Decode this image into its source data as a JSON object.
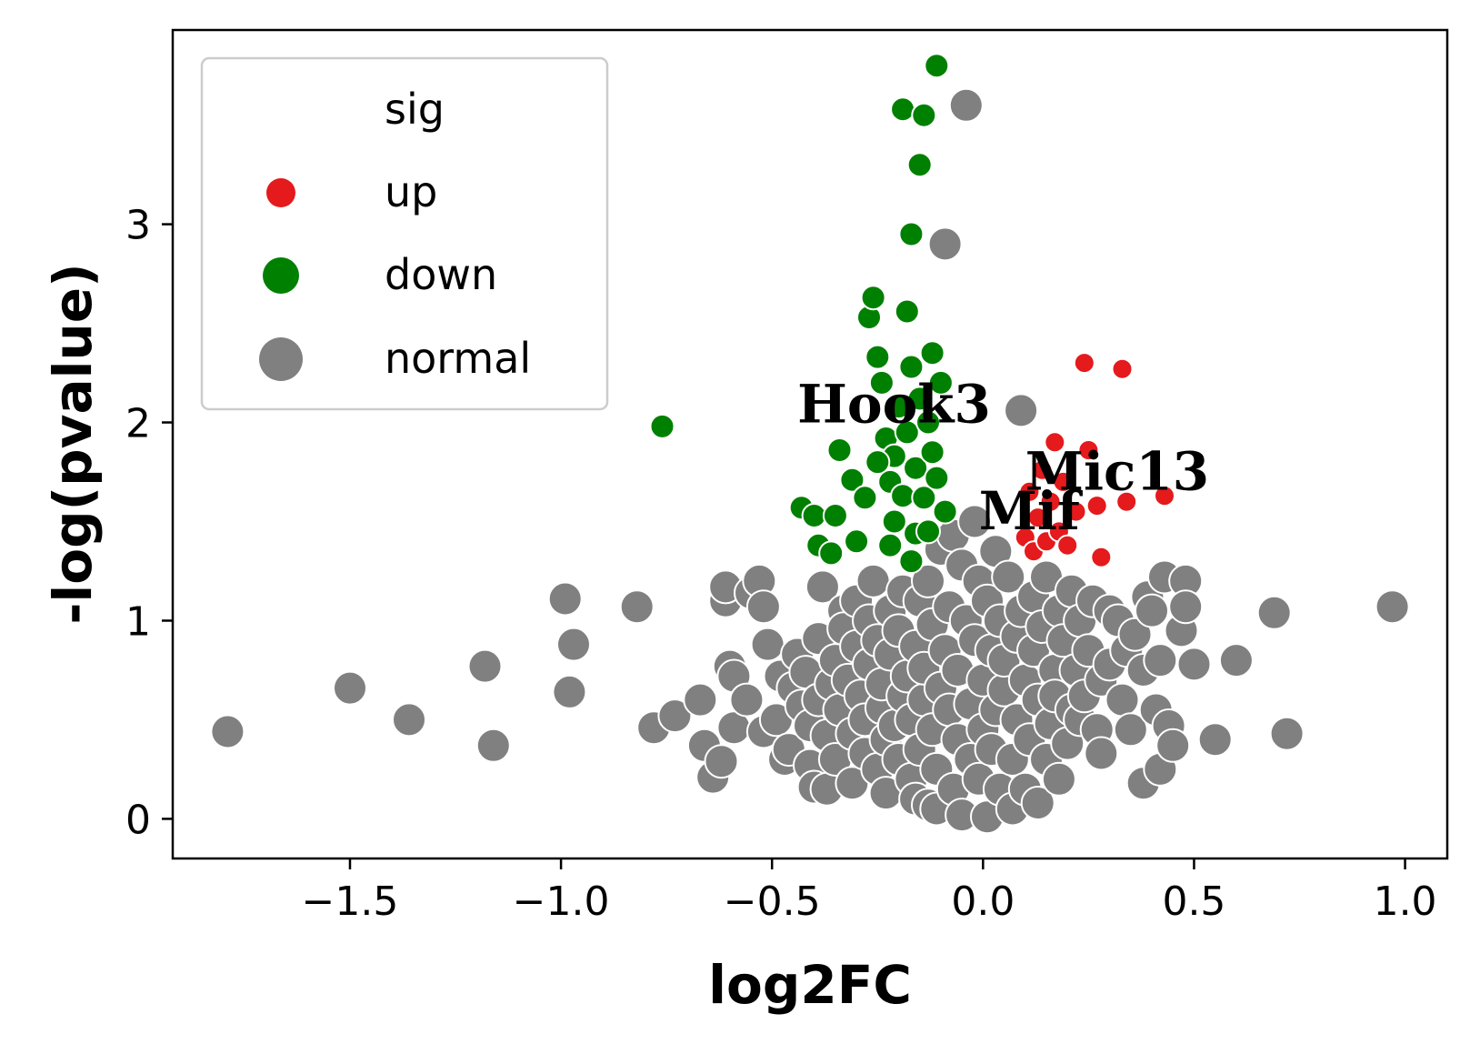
{
  "chart_data": {
    "type": "scatter",
    "xlabel": "log2FC",
    "ylabel": "-log(pvalue)",
    "xlim": [
      -1.92,
      1.1
    ],
    "ylim": [
      -0.2,
      3.98
    ],
    "x_ticks": [
      -1.5,
      -1.0,
      -0.5,
      0.0,
      0.5,
      1.0
    ],
    "x_tick_labels": [
      "−1.5",
      "−1.0",
      "−0.5",
      "0.0",
      "0.5",
      "1.0"
    ],
    "y_ticks": [
      0,
      1,
      2,
      3
    ],
    "y_tick_labels": [
      "0",
      "1",
      "2",
      "3"
    ],
    "grid": false,
    "legend": {
      "title": "sig",
      "placement": "top-left",
      "entries": [
        "up",
        "down",
        "normal"
      ]
    },
    "colors": {
      "up": "#e41a1c",
      "down": "#008000",
      "normal": "#808080"
    },
    "annotations": [
      {
        "text": "Hook3",
        "x": -0.44,
        "y": 2.0
      },
      {
        "text": "Mic13",
        "x": 0.1,
        "y": 1.66
      },
      {
        "text": "Mif",
        "x": -0.01,
        "y": 1.46
      }
    ],
    "series": [
      {
        "name": "normal",
        "points": [
          [
            -1.79,
            0.44
          ],
          [
            -1.5,
            0.66
          ],
          [
            -1.36,
            0.5
          ],
          [
            -1.18,
            0.77
          ],
          [
            -1.16,
            0.37
          ],
          [
            -0.99,
            1.11
          ],
          [
            -0.97,
            0.88
          ],
          [
            -0.98,
            0.64
          ],
          [
            -0.82,
            1.07
          ],
          [
            -0.78,
            0.46
          ],
          [
            -0.73,
            0.52
          ],
          [
            -0.67,
            0.6
          ],
          [
            -0.66,
            0.37
          ],
          [
            -0.64,
            0.21
          ],
          [
            -0.62,
            0.29
          ],
          [
            -0.61,
            1.1
          ],
          [
            -0.61,
            1.17
          ],
          [
            -0.6,
            0.77
          ],
          [
            -0.59,
            0.72
          ],
          [
            -0.59,
            0.46
          ],
          [
            -0.56,
            0.6
          ],
          [
            -0.55,
            1.14
          ],
          [
            -0.53,
            1.2
          ],
          [
            -0.52,
            1.07
          ],
          [
            -0.52,
            0.44
          ],
          [
            -0.51,
            0.88
          ],
          [
            -0.49,
            0.5
          ],
          [
            -0.48,
            0.72
          ],
          [
            -0.47,
            0.3
          ],
          [
            -0.46,
            0.35
          ],
          [
            -0.45,
            0.66
          ],
          [
            -0.44,
            0.83
          ],
          [
            -0.43,
            0.57
          ],
          [
            -0.42,
            0.74
          ],
          [
            -0.41,
            0.47
          ],
          [
            -0.41,
            0.27
          ],
          [
            -0.4,
            0.16
          ],
          [
            -0.39,
            0.6
          ],
          [
            -0.39,
            0.91
          ],
          [
            -0.38,
            1.17
          ],
          [
            -0.37,
            0.15
          ],
          [
            -0.37,
            0.42
          ],
          [
            -0.36,
            0.68
          ],
          [
            -0.35,
            0.8
          ],
          [
            -0.35,
            0.3
          ],
          [
            -0.34,
            0.55
          ],
          [
            -0.33,
            1.05
          ],
          [
            -0.33,
            0.96
          ],
          [
            -0.32,
            0.7
          ],
          [
            -0.31,
            0.43
          ],
          [
            -0.31,
            0.18
          ],
          [
            -0.3,
            0.87
          ],
          [
            -0.3,
            1.1
          ],
          [
            -0.29,
            0.62
          ],
          [
            -0.28,
            0.33
          ],
          [
            -0.28,
            0.5
          ],
          [
            -0.27,
            1.0
          ],
          [
            -0.27,
            0.78
          ],
          [
            -0.26,
            1.2
          ],
          [
            -0.25,
            0.25
          ],
          [
            -0.25,
            0.9
          ],
          [
            -0.24,
            0.56
          ],
          [
            -0.24,
            0.68
          ],
          [
            -0.23,
            0.13
          ],
          [
            -0.23,
            0.4
          ],
          [
            -0.22,
            1.05
          ],
          [
            -0.22,
            0.83
          ],
          [
            -0.21,
            0.47
          ],
          [
            -0.2,
            0.3
          ],
          [
            -0.2,
            0.95
          ],
          [
            -0.19,
            0.62
          ],
          [
            -0.19,
            1.15
          ],
          [
            -0.18,
            0.72
          ],
          [
            -0.17,
            0.2
          ],
          [
            -0.17,
            0.5
          ],
          [
            -0.16,
            0.1
          ],
          [
            -0.16,
            0.87
          ],
          [
            -0.15,
            1.1
          ],
          [
            -0.15,
            0.35
          ],
          [
            -0.14,
            0.6
          ],
          [
            -0.14,
            0.76
          ],
          [
            -0.13,
            0.07
          ],
          [
            -0.13,
            1.2
          ],
          [
            -0.12,
            0.45
          ],
          [
            -0.12,
            0.98
          ],
          [
            -0.11,
            0.05
          ],
          [
            -0.11,
            0.25
          ],
          [
            -0.1,
            0.66
          ],
          [
            -0.1,
            1.36
          ],
          [
            -0.09,
            2.9
          ],
          [
            -0.09,
            0.85
          ],
          [
            -0.08,
            0.55
          ],
          [
            -0.08,
            1.07
          ],
          [
            -0.07,
            1.43
          ],
          [
            -0.07,
            0.15
          ],
          [
            -0.06,
            0.4
          ],
          [
            -0.06,
            0.75
          ],
          [
            -0.05,
            1.28
          ],
          [
            -0.05,
            0.02
          ],
          [
            -0.04,
            1.0
          ],
          [
            -0.04,
            3.6
          ],
          [
            -0.03,
            0.3
          ],
          [
            -0.03,
            0.58
          ],
          [
            -0.02,
            1.5
          ],
          [
            -0.02,
            0.9
          ],
          [
            -0.01,
            0.2
          ],
          [
            -0.01,
            1.2
          ],
          [
            0.0,
            0.45
          ],
          [
            0.0,
            0.7
          ],
          [
            0.01,
            1.1
          ],
          [
            0.01,
            0.01
          ],
          [
            0.02,
            0.35
          ],
          [
            0.02,
            0.85
          ],
          [
            0.03,
            1.35
          ],
          [
            0.03,
            0.55
          ],
          [
            0.04,
            0.15
          ],
          [
            0.04,
            1.0
          ],
          [
            0.05,
            0.65
          ],
          [
            0.05,
            0.8
          ],
          [
            0.06,
            1.22
          ],
          [
            0.07,
            0.3
          ],
          [
            0.07,
            0.05
          ],
          [
            0.08,
            0.92
          ],
          [
            0.08,
            0.5
          ],
          [
            0.09,
            2.06
          ],
          [
            0.09,
            1.05
          ],
          [
            0.1,
            0.7
          ],
          [
            0.1,
            0.15
          ],
          [
            0.11,
            0.4
          ],
          [
            0.12,
            1.12
          ],
          [
            0.12,
            0.85
          ],
          [
            0.13,
            0.6
          ],
          [
            0.13,
            0.08
          ],
          [
            0.14,
            0.97
          ],
          [
            0.15,
            0.3
          ],
          [
            0.15,
            1.22
          ],
          [
            0.16,
            0.48
          ],
          [
            0.17,
            0.75
          ],
          [
            0.17,
            0.62
          ],
          [
            0.18,
            1.05
          ],
          [
            0.18,
            0.2
          ],
          [
            0.19,
            0.9
          ],
          [
            0.2,
            0.38
          ],
          [
            0.21,
            0.55
          ],
          [
            0.21,
            1.15
          ],
          [
            0.22,
            0.75
          ],
          [
            0.23,
            1.0
          ],
          [
            0.23,
            0.5
          ],
          [
            0.24,
            0.62
          ],
          [
            0.25,
            0.85
          ],
          [
            0.26,
            1.1
          ],
          [
            0.27,
            0.45
          ],
          [
            0.28,
            0.7
          ],
          [
            0.28,
            0.33
          ],
          [
            0.3,
            1.05
          ],
          [
            0.3,
            0.78
          ],
          [
            0.32,
            1.0
          ],
          [
            0.33,
            0.6
          ],
          [
            0.34,
            0.85
          ],
          [
            0.35,
            0.45
          ],
          [
            0.36,
            0.93
          ],
          [
            0.38,
            0.75
          ],
          [
            0.38,
            0.18
          ],
          [
            0.39,
            1.12
          ],
          [
            0.4,
            1.05
          ],
          [
            0.41,
            0.55
          ],
          [
            0.42,
            0.8
          ],
          [
            0.42,
            0.25
          ],
          [
            0.43,
            1.22
          ],
          [
            0.44,
            0.47
          ],
          [
            0.45,
            0.37
          ],
          [
            0.47,
            0.95
          ],
          [
            0.48,
            1.2
          ],
          [
            0.48,
            1.07
          ],
          [
            0.5,
            0.78
          ],
          [
            0.55,
            0.4
          ],
          [
            0.6,
            0.8
          ],
          [
            0.69,
            1.04
          ],
          [
            0.72,
            0.43
          ],
          [
            0.97,
            1.07
          ]
        ]
      },
      {
        "name": "down",
        "points": [
          [
            -0.76,
            1.98
          ],
          [
            -0.43,
            1.57
          ],
          [
            -0.4,
            1.53
          ],
          [
            -0.39,
            1.38
          ],
          [
            -0.36,
            1.34
          ],
          [
            -0.35,
            1.53
          ],
          [
            -0.34,
            1.86
          ],
          [
            -0.31,
            1.71
          ],
          [
            -0.3,
            1.4
          ],
          [
            -0.27,
            2.53
          ],
          [
            -0.26,
            2.63
          ],
          [
            -0.25,
            2.33
          ],
          [
            -0.24,
            2.2
          ],
          [
            -0.23,
            1.92
          ],
          [
            -0.22,
            1.7
          ],
          [
            -0.21,
            1.5
          ],
          [
            -0.21,
            1.83
          ],
          [
            -0.2,
            2.08
          ],
          [
            -0.19,
            3.58
          ],
          [
            -0.19,
            1.63
          ],
          [
            -0.18,
            2.56
          ],
          [
            -0.18,
            1.95
          ],
          [
            -0.17,
            2.28
          ],
          [
            -0.17,
            2.95
          ],
          [
            -0.16,
            1.77
          ],
          [
            -0.16,
            1.44
          ],
          [
            -0.15,
            3.3
          ],
          [
            -0.15,
            2.12
          ],
          [
            -0.14,
            3.55
          ],
          [
            -0.14,
            1.62
          ],
          [
            -0.13,
            2.0
          ],
          [
            -0.12,
            1.85
          ],
          [
            -0.12,
            2.35
          ],
          [
            -0.11,
            3.8
          ],
          [
            -0.11,
            1.72
          ],
          [
            -0.1,
            2.2
          ],
          [
            -0.09,
            1.55
          ],
          [
            -0.22,
            1.38
          ],
          [
            -0.28,
            1.62
          ],
          [
            -0.17,
            1.3
          ],
          [
            -0.13,
            1.45
          ],
          [
            -0.25,
            1.8
          ]
        ]
      },
      {
        "name": "up",
        "points": [
          [
            0.1,
            1.42
          ],
          [
            0.11,
            1.65
          ],
          [
            0.12,
            1.35
          ],
          [
            0.13,
            1.52
          ],
          [
            0.14,
            1.76
          ],
          [
            0.15,
            1.4
          ],
          [
            0.16,
            1.6
          ],
          [
            0.17,
            1.9
          ],
          [
            0.18,
            1.45
          ],
          [
            0.19,
            1.7
          ],
          [
            0.2,
            1.38
          ],
          [
            0.22,
            1.55
          ],
          [
            0.24,
            2.3
          ],
          [
            0.25,
            1.86
          ],
          [
            0.27,
            1.58
          ],
          [
            0.28,
            1.32
          ],
          [
            0.33,
            2.27
          ],
          [
            0.34,
            1.6
          ],
          [
            0.43,
            1.63
          ]
        ]
      }
    ]
  }
}
